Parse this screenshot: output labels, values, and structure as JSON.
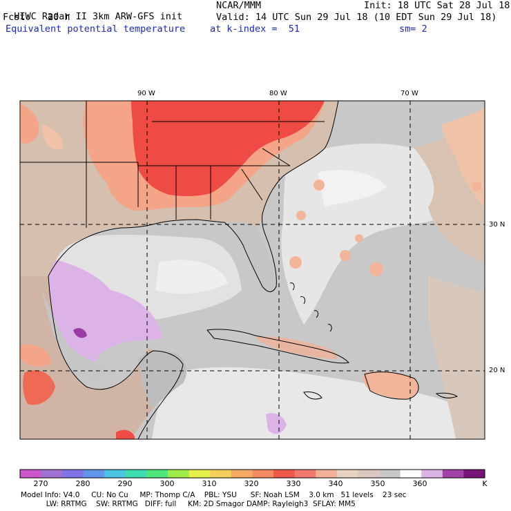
{
  "header": {
    "title": "HIWC Radar II 3km ARW-GFS init",
    "org": "NCAR/MMM",
    "init": "Init: 18 UTC Sat 28 Jul 18",
    "fcst": "Fcst:   20 h",
    "valid": "Valid: 14 UTC Sun 29 Jul 18 (10 EDT Sun 29 Jul 18)",
    "field": "Equivalent potential temperature",
    "level": "at k-index =  51",
    "smooth": "sm= 2"
  },
  "map": {
    "lon_labels": [
      "90 W",
      "80 W",
      "70 W"
    ],
    "lat_labels": [
      "30 N",
      "20 N"
    ],
    "colors": {
      "ocean_gray": "#c8c8c8",
      "dark_gray": "#a5a5a5",
      "whitish": "#ececec",
      "tan": "#d8c3b2",
      "peach": "#f2b599",
      "salmon": "#f2917b",
      "red": "#ee4b45",
      "lavender": "#dcb3e6",
      "purple": "#9a3aa2"
    }
  },
  "colorbar": {
    "colors": [
      "#cc55cc",
      "#a070d2",
      "#7f74e6",
      "#5f96ea",
      "#4cc5e4",
      "#3fdcb0",
      "#4fe67a",
      "#a0ea4a",
      "#e6f04a",
      "#f5cf5c",
      "#f6a963",
      "#f48a62",
      "#ee5a47",
      "#f07a6e",
      "#f4b199",
      "#e8d3c3",
      "#d9c9c0",
      "#c8c8c8",
      "#ffffff",
      "#dcb3e6",
      "#a342a8",
      "#781678"
    ],
    "labels": [
      "270",
      "280",
      "290",
      "300",
      "310",
      "320",
      "330",
      "340",
      "350",
      "360"
    ],
    "unit": "K"
  },
  "footer": {
    "line1": "Model Info: V4.0     CU: No Cu     MP: Thomp C/A    PBL: YSU      SF: Noah LSM    3.0 km   51 levels    23 sec",
    "line2": "           LW: RRTMG    SW: RRTMG   DIFF: full     KM: 2D Smagor DAMP: Rayleigh3  SFLAY: MM5"
  }
}
